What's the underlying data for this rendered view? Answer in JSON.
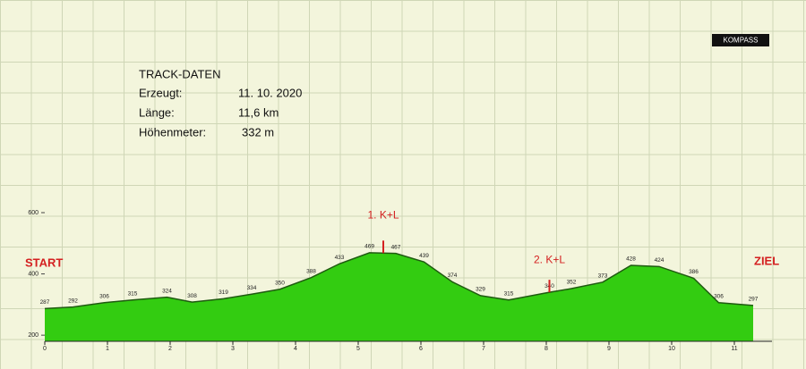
{
  "chart_data": {
    "type": "area",
    "logo": "KOMPASS",
    "info": {
      "title": "TRACK-DATEN",
      "rows": [
        [
          "Erzeugt:",
          "11. 10. 2020"
        ],
        [
          "Länge:",
          "11,6 km"
        ],
        [
          "Höhenmeter:",
          "332 m"
        ]
      ]
    },
    "start_label": "START",
    "end_label": "ZIEL",
    "annotations": [
      {
        "text": "1. K+L",
        "x": 5.4
      },
      {
        "text": "2. K+L",
        "x": 8.05
      }
    ],
    "x": [
      0,
      0.45,
      0.95,
      1.4,
      1.95,
      2.35,
      2.85,
      3.3,
      3.75,
      4.25,
      4.7,
      5.18,
      5.6,
      6.05,
      6.5,
      6.95,
      7.4,
      8.05,
      8.4,
      8.9,
      9.35,
      9.8,
      10.35,
      10.75,
      11.3
    ],
    "values": [
      287,
      292,
      306,
      315,
      324,
      308,
      319,
      334,
      350,
      388,
      433,
      469,
      467,
      439,
      374,
      329,
      315,
      340,
      352,
      373,
      428,
      424,
      386,
      306,
      297
    ],
    "color": "#33cc11",
    "line_color": "#1f5a10",
    "xlim": [
      0,
      11.6
    ],
    "xticks": [
      0,
      1,
      2,
      3,
      4,
      5,
      6,
      7,
      8,
      9,
      10,
      11
    ],
    "ylim": [
      180,
      600
    ],
    "yticks": [
      200,
      400,
      600
    ]
  }
}
